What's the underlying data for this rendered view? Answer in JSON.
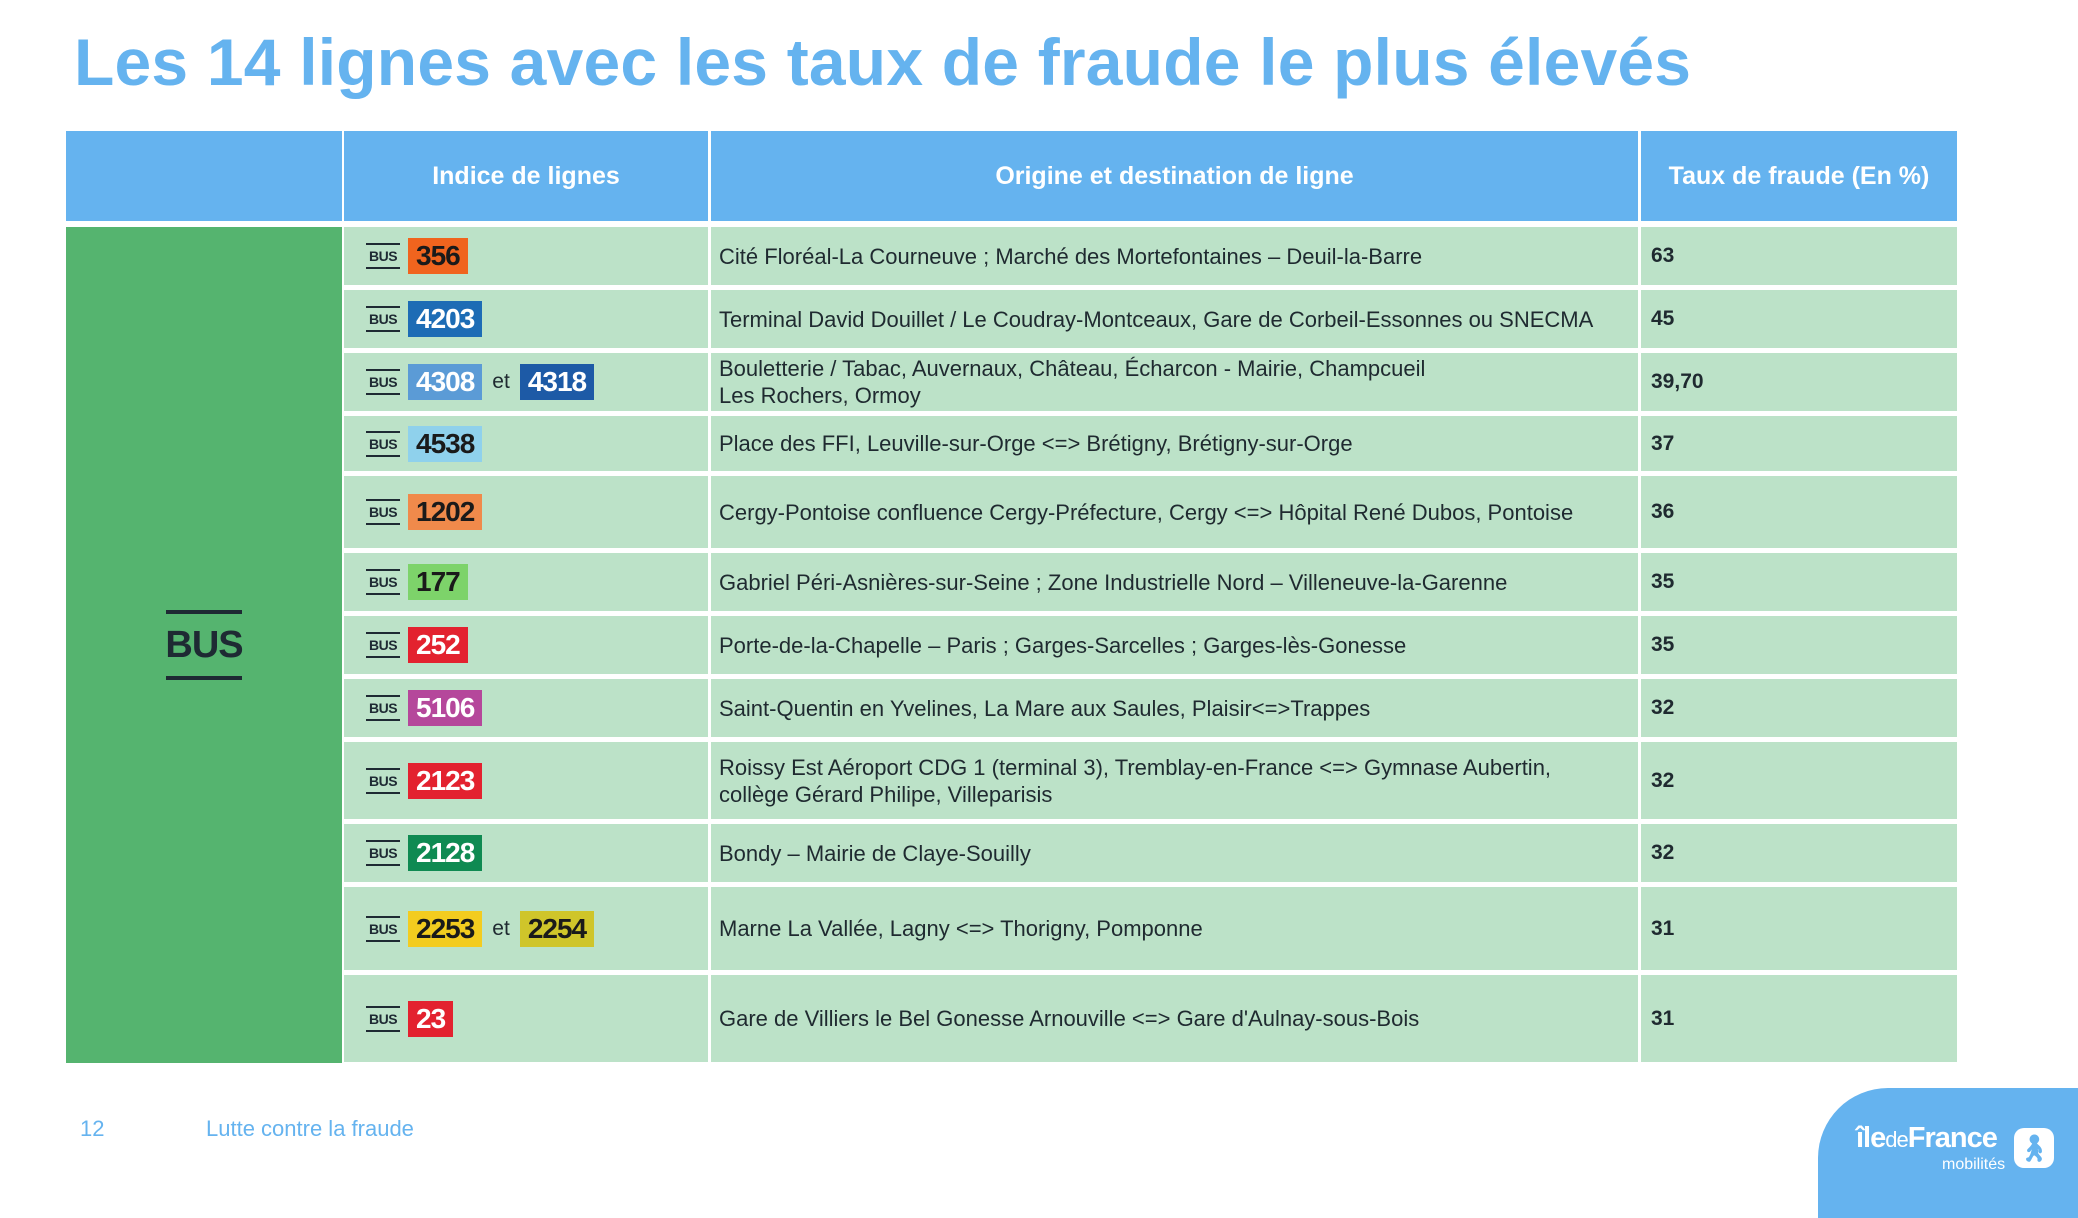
{
  "title": "Les 14 lignes avec les taux de fraude le plus élevés",
  "table": {
    "headers": [
      "",
      "Indice de lignes",
      "Origine et destination de ligne",
      "Taux de fraude (En %)"
    ],
    "mode_label": "BUS",
    "bus_icon_label": "BUS",
    "and_label": "et",
    "rows": [
      {
        "lines": [
          "356"
        ],
        "origin": "Cité Floréal-La Courneuve ; Marché des Mortefontaines – Deuil-la-Barre",
        "origin2": "",
        "rate": "63"
      },
      {
        "lines": [
          "4203"
        ],
        "origin": "Terminal David Douillet / Le Coudray-Montceaux, Gare de Corbeil-Essonnes ou SNECMA",
        "origin2": "",
        "rate": "45"
      },
      {
        "lines": [
          "4308",
          "4318"
        ],
        "origin": "Bouletterie / Tabac, Auvernaux, Château, Écharcon - Mairie, Champcueil",
        "origin2": "Les Rochers, Ormoy",
        "rate": "39,70"
      },
      {
        "lines": [
          "4538"
        ],
        "origin": "Place des FFI, Leuville-sur-Orge <=> Brétigny, Brétigny-sur-Orge",
        "origin2": "",
        "rate": "37"
      },
      {
        "lines": [
          "1202"
        ],
        "origin": "Cergy-Pontoise confluence Cergy-Préfecture, Cergy <=> Hôpital René Dubos, Pontoise",
        "origin2": "",
        "rate": "36"
      },
      {
        "lines": [
          "177"
        ],
        "origin": "Gabriel Péri-Asnières-sur-Seine ; Zone Industrielle Nord – Villeneuve-la-Garenne",
        "origin2": "",
        "rate": "35"
      },
      {
        "lines": [
          "252"
        ],
        "origin": "Porte-de-la-Chapelle – Paris ; Garges-Sarcelles ; Garges-lès-Gonesse",
        "origin2": "",
        "rate": "35"
      },
      {
        "lines": [
          "5106"
        ],
        "origin": "Saint-Quentin en Yvelines, La Mare aux Saules, Plaisir<=>Trappes",
        "origin2": "",
        "rate": "32"
      },
      {
        "lines": [
          "2123"
        ],
        "origin": "Roissy Est Aéroport CDG 1 (terminal 3), Tremblay-en-France <=> Gymnase Aubertin,",
        "origin2": "collège Gérard Philipe, Villeparisis",
        "rate": "32"
      },
      {
        "lines": [
          "2128"
        ],
        "origin": "Bondy   – Mairie de Claye-Souilly",
        "origin2": "",
        "rate": "32"
      },
      {
        "lines": [
          "2253",
          "2254"
        ],
        "origin": "Marne La Vallée, Lagny <=> Thorigny, Pomponne",
        "origin2": "",
        "rate": "31"
      },
      {
        "lines": [
          "23"
        ],
        "origin": "Gare de Villiers le Bel Gonesse Arnouville <=> Gare d'Aulnay-sous-Bois",
        "origin2": "",
        "rate": "31"
      }
    ]
  },
  "line_colors": {
    "356": {
      "bg": "#f0641e",
      "fg": "#1a1a1a"
    },
    "4203": {
      "bg": "#1d6cb5",
      "fg": "#ffffff"
    },
    "4308": {
      "bg": "#5b9bd6",
      "fg": "#ffffff"
    },
    "4318": {
      "bg": "#1d5aa6",
      "fg": "#ffffff"
    },
    "4538": {
      "bg": "#8fd1ec",
      "fg": "#1a1a1a"
    },
    "1202": {
      "bg": "#f08a4b",
      "fg": "#1a1a1a"
    },
    "177": {
      "bg": "#7dd36a",
      "fg": "#1a1a1a"
    },
    "252": {
      "bg": "#e3222f",
      "fg": "#ffffff"
    },
    "5106": {
      "bg": "#b5479b",
      "fg": "#ffffff"
    },
    "2123": {
      "bg": "#e3222f",
      "fg": "#ffffff"
    },
    "2128": {
      "bg": "#0f8a52",
      "fg": "#ffffff"
    },
    "2253": {
      "bg": "#f3cc1f",
      "fg": "#1a1a1a"
    },
    "2254": {
      "bg": "#cfc52a",
      "fg": "#1a1a1a"
    },
    "23": {
      "bg": "#e3222f",
      "fg": "#ffffff"
    }
  },
  "footer": {
    "page_number": "12",
    "section": "Lutte contre la fraude"
  },
  "logo": {
    "brand_ile": "île",
    "brand_de": "de",
    "brand_france": "France",
    "sub": "mobilités",
    "icon": "person-walking-icon"
  }
}
